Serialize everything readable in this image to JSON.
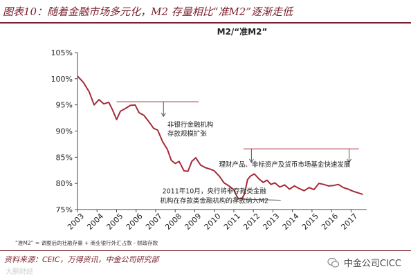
{
  "header": {
    "title": "图表10：随着金融市场多元化，M2 存量相比“准M2”逐渐走低"
  },
  "chart_data": {
    "type": "line",
    "title": "M2/“准M2”",
    "xlabel": "",
    "ylabel": "",
    "x_ticks": [
      "2003",
      "2004",
      "2005",
      "2006",
      "2007",
      "2008",
      "2009",
      "2010",
      "2011",
      "2012",
      "2013",
      "2014",
      "2015",
      "2016",
      "2017"
    ],
    "y_ticks": [
      "75%",
      "80%",
      "85%",
      "90%",
      "95%",
      "100%",
      "105%"
    ],
    "xlim": [
      2003,
      2017.8
    ],
    "ylim": [
      75,
      105
    ],
    "grid": false,
    "line_color": "#a32a38",
    "series": [
      {
        "x": [
          2003.0,
          2003.3,
          2003.6,
          2003.85,
          2004.1,
          2004.35,
          2004.6,
          2004.8,
          2005.0,
          2005.2,
          2005.45,
          2005.7,
          2005.95,
          2006.15,
          2006.4,
          2006.65,
          2006.9,
          2007.1,
          2007.35,
          2007.6,
          2007.8,
          2008.0,
          2008.2,
          2008.45,
          2008.65,
          2008.85,
          2009.05,
          2009.3,
          2009.55,
          2009.8,
          2010.0,
          2010.25,
          2010.5,
          2010.75,
          2011.0,
          2011.2,
          2011.4,
          2011.55,
          2011.7,
          2011.85,
          2012.05,
          2012.3,
          2012.5,
          2012.7,
          2012.9,
          2013.1,
          2013.35,
          2013.6,
          2013.85,
          2014.1,
          2014.35,
          2014.6,
          2014.85,
          2015.1,
          2015.35,
          2015.6,
          2015.85,
          2016.1,
          2016.35,
          2016.6,
          2016.85,
          2017.1,
          2017.35,
          2017.6
        ],
        "y": [
          100.5,
          99.3,
          97.5,
          95.0,
          96.0,
          95.2,
          95.5,
          94.0,
          92.2,
          93.8,
          94.3,
          94.9,
          95.0,
          93.5,
          93.0,
          91.8,
          90.5,
          90.2,
          88.0,
          86.5,
          84.4,
          83.8,
          84.2,
          82.4,
          82.3,
          84.2,
          84.9,
          83.5,
          83.0,
          82.7,
          82.4,
          81.4,
          80.1,
          79.5,
          78.8,
          77.2,
          77.0,
          78.0,
          80.7,
          81.4,
          81.8,
          80.8,
          80.2,
          80.6,
          79.8,
          80.1,
          79.3,
          79.7,
          78.9,
          79.5,
          79.0,
          78.6,
          79.2,
          78.8,
          80.0,
          79.8,
          79.5,
          79.6,
          79.8,
          79.2,
          78.9,
          78.5,
          78.2,
          77.9
        ]
      }
    ],
    "annotations": [
      {
        "text": "非银行金融机构",
        "text2": "存款规模扩张",
        "x": 2007.6,
        "y": 90.8
      },
      {
        "text": "理财产品、非标资产及货币市场基金快速发展",
        "x": 2013.6,
        "y": 83.2
      },
      {
        "text": "2011年10月，央行将非存款类金融",
        "text2": "机构在存款类金融机构的存款纳入M2",
        "x": 2010.0,
        "y": 78.1
      }
    ],
    "bracket_lines": [
      {
        "x1": 2005.0,
        "x2": 2009.2,
        "y": 95.6,
        "arrow_x": 2007.4,
        "arrow_y_end": 92.8
      },
      {
        "x1": 2011.5,
        "x2": 2017.4,
        "y": 86.6,
        "arrow_xs": [
          2011.9,
          2016.9
        ],
        "arrow_y_end": 84.0
      }
    ]
  },
  "note": {
    "text": "“准M2” = 调整后的社融存量 + 商业银行外汇占款 - 财政存款"
  },
  "source": {
    "text": "资料来源：CEIC，万得资讯，中金公司研究部"
  },
  "watermarks": {
    "left": "大鹏财经",
    "right": "中金公司CICC"
  }
}
